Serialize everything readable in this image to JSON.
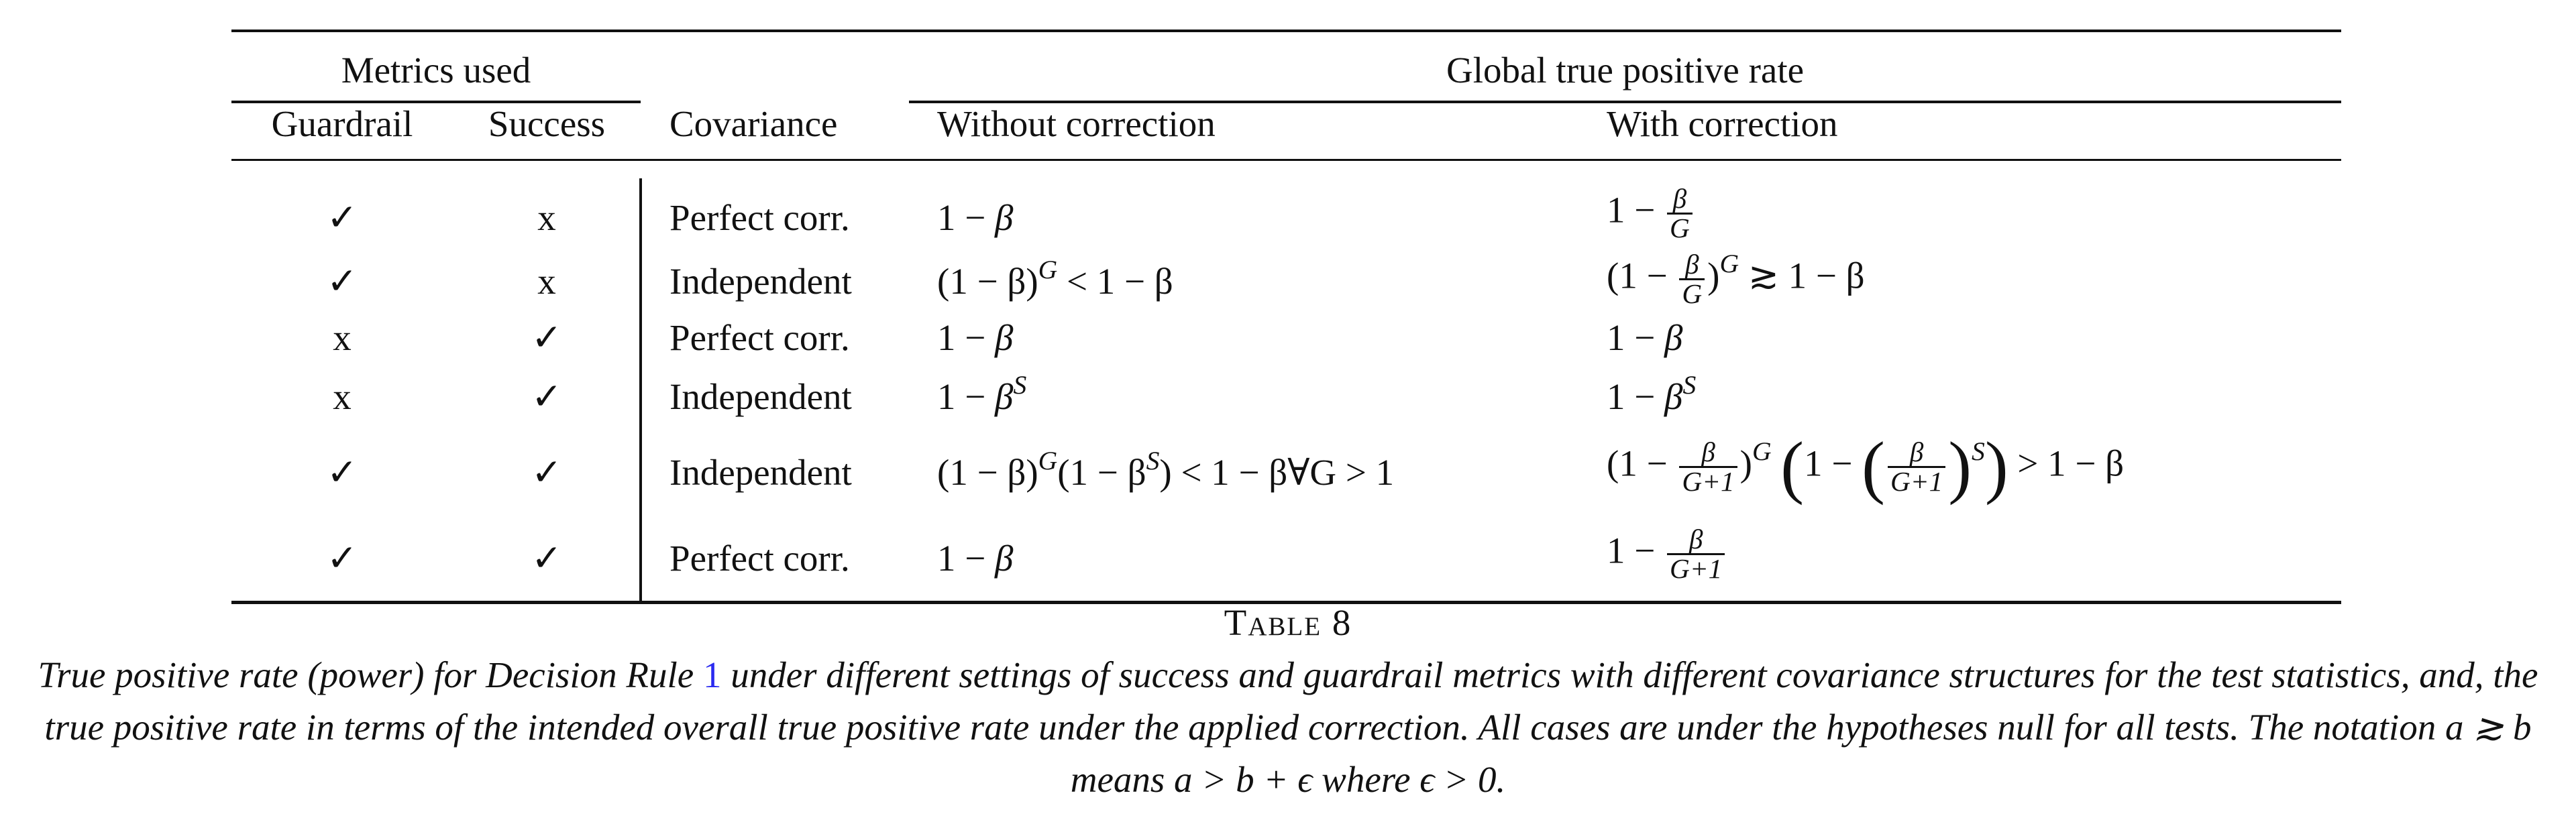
{
  "table": {
    "header": {
      "metrics_used": "Metrics used",
      "guardrail": "Guardrail",
      "success": "Success",
      "covariance": "Covariance",
      "global_tpr": "Global true positive rate",
      "without_correction": "Without correction",
      "with_correction": "With correction"
    },
    "rows": [
      {
        "guardrail": "✓",
        "success": "x",
        "covariance": "Perfect corr."
      },
      {
        "guardrail": "✓",
        "success": "x",
        "covariance": "Independent"
      },
      {
        "guardrail": "x",
        "success": "✓",
        "covariance": "Perfect corr."
      },
      {
        "guardrail": "x",
        "success": "✓",
        "covariance": "Independent"
      },
      {
        "guardrail": "✓",
        "success": "✓",
        "covariance": "Independent"
      },
      {
        "guardrail": "✓",
        "success": "✓",
        "covariance": "Perfect corr."
      }
    ],
    "math": {
      "one_minus": "1 −",
      "beta": "β",
      "G": "G",
      "S": "S",
      "G_plus_1": "G+1",
      "lt_one_minus_beta": "< 1 − β",
      "gt_one_minus_beta": "> 1 − β",
      "approx_one_minus_beta": "≳ 1 − β",
      "forall_G_gt_1": "< 1 − β∀G > 1",
      "open_paren": "(",
      "close_paren": ")",
      "one_minus_beta_paren": "(1 − β)",
      "one_minus_beta_S_paren": "(1 − β",
      "S_close": ")",
      "open_one_minus": "(1 −",
      "big_open": "(",
      "big_close": ")"
    }
  },
  "caption": {
    "label": "Table 8",
    "text_1": "True positive rate (power) for Decision Rule ",
    "ref": "1",
    "text_2": " under different settings of success and guardrail metrics with different covariance structures for the test statistics, and, the true positive rate in terms of the intended overall true positive rate under the applied correction. All cases are under the hypotheses null for all tests. The notation ",
    "notation": "a ≳ b means a > b + ϵ where ϵ > 0."
  }
}
